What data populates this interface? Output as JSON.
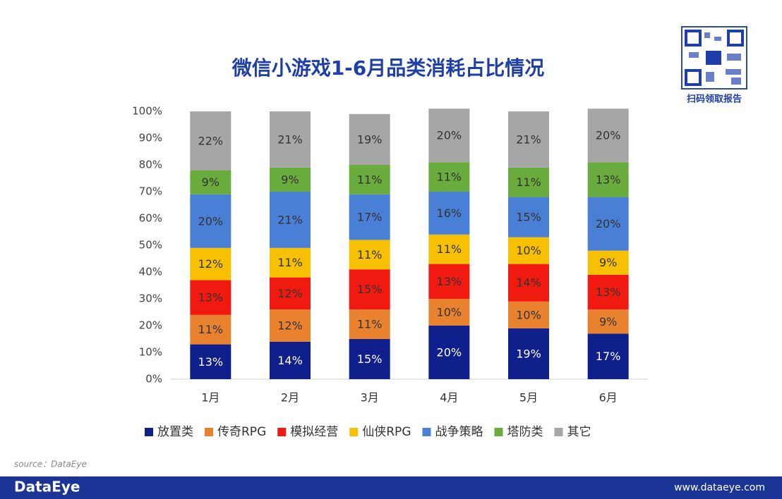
{
  "chart_data": {
    "type": "stacked_bar",
    "title": "微信小游戏1-6月品类消耗占比情况",
    "categories": [
      "1月",
      "2月",
      "3月",
      "4月",
      "5月",
      "6月"
    ],
    "series": [
      {
        "name": "放置类",
        "color": "#0f1f8c",
        "label_color": "#ffffff",
        "values": [
          13,
          14,
          15,
          20,
          19,
          17
        ],
        "value_labels": [
          "13%",
          "14%",
          "15%",
          "20%",
          "19%",
          "17%"
        ]
      },
      {
        "name": "传奇RPG",
        "color": "#e9822e",
        "label_color": "#333333",
        "values": [
          11,
          12,
          11,
          10,
          10,
          9
        ],
        "value_labels": [
          "11%",
          "12%",
          "11%",
          "10%",
          "10%",
          "9%"
        ]
      },
      {
        "name": "模拟经营",
        "color": "#f01a10",
        "label_color": "#333333",
        "values": [
          13,
          12,
          15,
          13,
          14,
          13
        ],
        "value_labels": [
          "13%",
          "12%",
          "15%",
          "13%",
          "14%",
          "13%"
        ]
      },
      {
        "name": "仙侠RPG",
        "color": "#f7c000",
        "label_color": "#333333",
        "values": [
          12,
          11,
          11,
          11,
          10,
          9
        ],
        "value_labels": [
          "12%",
          "11%",
          "11%",
          "11%",
          "10%",
          "9%"
        ]
      },
      {
        "name": "战争策略",
        "color": "#4a7fd6",
        "label_color": "#333333",
        "values": [
          20,
          21,
          17,
          16,
          15,
          20
        ],
        "value_labels": [
          "20%",
          "21%",
          "17%",
          "16%",
          "15%",
          "20%"
        ]
      },
      {
        "name": "塔防类",
        "color": "#6aab3d",
        "label_color": "#333333",
        "values": [
          9,
          9,
          11,
          11,
          11,
          13
        ],
        "value_labels": [
          "9%",
          "9%",
          "11%",
          "11%",
          "11%",
          "13%"
        ]
      },
      {
        "name": "其它",
        "color": "#a6a6a6",
        "label_color": "#333333",
        "values": [
          22,
          21,
          19,
          20,
          21,
          20
        ],
        "value_labels": [
          "22%",
          "21%",
          "19%",
          "20%",
          "21%",
          "20%"
        ]
      }
    ],
    "ylim": [
      0,
      100
    ],
    "yticks": [
      {
        "value": 0,
        "label": "0%"
      },
      {
        "value": 10,
        "label": "10%"
      },
      {
        "value": 20,
        "label": "20%"
      },
      {
        "value": 30,
        "label": "30%"
      },
      {
        "value": 40,
        "label": "40%"
      },
      {
        "value": 50,
        "label": "50%"
      },
      {
        "value": 60,
        "label": "60%"
      },
      {
        "value": 70,
        "label": "70%"
      },
      {
        "value": 80,
        "label": "80%"
      },
      {
        "value": 90,
        "label": "90%"
      },
      {
        "value": 100,
        "label": "100%"
      }
    ],
    "legend": "bottom"
  },
  "qr_caption": "扫码领取报告",
  "source": "source：DataEye",
  "footer": {
    "brand": "DataEye",
    "url": "www.dataeye.com"
  }
}
